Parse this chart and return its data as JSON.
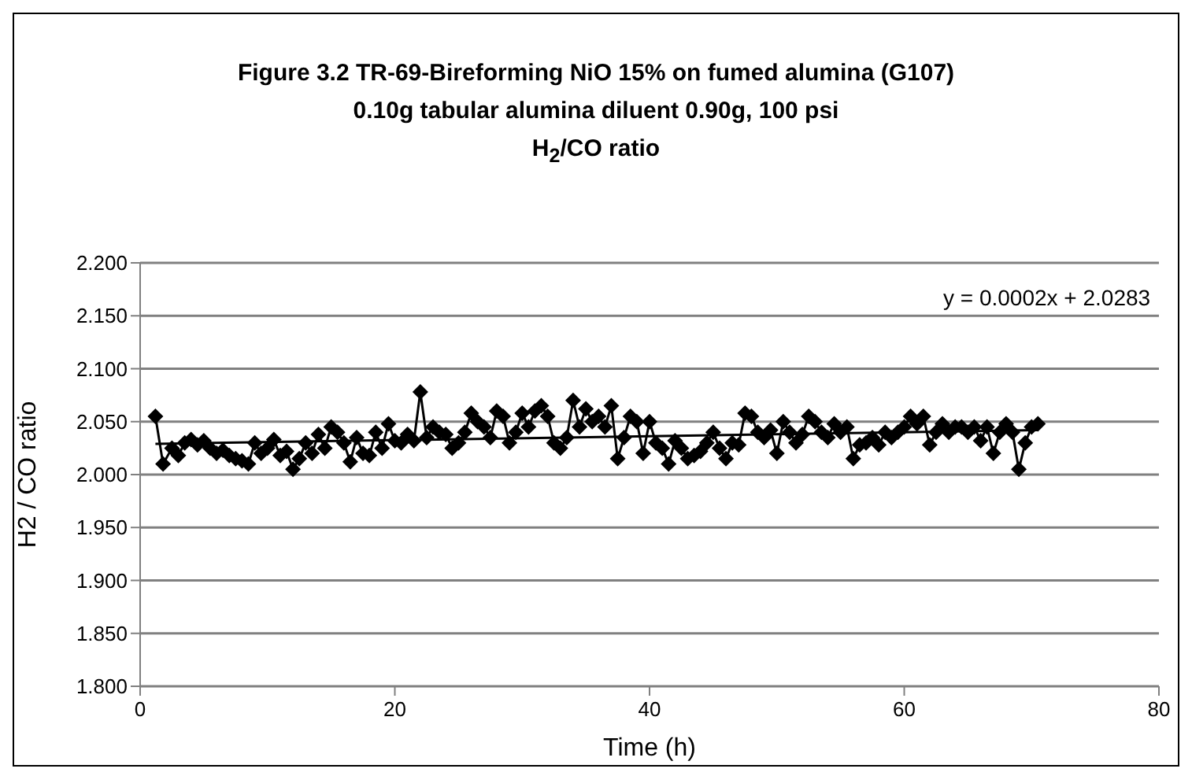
{
  "chart_data": {
    "type": "line",
    "title": "Figure 3.2 TR-69-Bireforming NiO 15% on fumed alumina (G107)",
    "subtitle": "0.10g tabular alumina diluent 0.90g, 100 psi\nH$_{2}$/CO ratio",
    "xlabel": "Time (h)",
    "ylabel": "H2 / CO ratio",
    "xlim": [
      0,
      80
    ],
    "xticks": [
      0,
      20,
      40,
      60,
      80
    ],
    "ylim": [
      1.8,
      2.2
    ],
    "yticks": [
      {
        "value": 1.8,
        "label": "1.800"
      },
      {
        "value": 1.85,
        "label": "1.850"
      },
      {
        "value": 1.9,
        "label": "1.900"
      },
      {
        "value": 1.95,
        "label": "1.950"
      },
      {
        "value": 2.0,
        "label": "2.000"
      },
      {
        "value": 2.05,
        "label": "2.050"
      },
      {
        "value": 2.1,
        "label": "2.100"
      },
      {
        "value": 2.15,
        "label": "2.150"
      },
      {
        "value": 2.2,
        "label": "2.200"
      }
    ],
    "grid": "y",
    "legend": false,
    "marker": "diamond",
    "line_style": "solid",
    "annotations": [
      "y = 0.0002x + 2.0283"
    ],
    "series": [
      {
        "color": "#000000",
        "x": [
          1.2,
          1.8,
          2.5,
          3,
          3.5,
          4,
          4.5,
          5,
          5.5,
          6,
          6.5,
          7,
          7.5,
          8,
          8.5,
          9,
          9.5,
          10,
          10.5,
          11,
          11.5,
          12,
          12.5,
          13,
          13.5,
          14,
          14.5,
          15,
          15.5,
          16,
          16.5,
          17,
          17.5,
          18,
          18.5,
          19,
          19.5,
          20,
          20.5,
          21,
          21.5,
          22,
          22.5,
          23,
          23.5,
          24,
          24.5,
          25,
          25.5,
          26,
          26.5,
          27,
          27.5,
          28,
          28.5,
          29,
          29.5,
          30,
          30.5,
          31,
          31.5,
          32,
          32.5,
          33,
          33.5,
          34,
          34.5,
          35,
          35.5,
          36,
          36.5,
          37,
          37.5,
          38,
          38.5,
          39,
          39.5,
          40,
          40.5,
          41,
          41.5,
          42,
          42.5,
          43,
          43.5,
          44,
          44.5,
          45,
          45.5,
          46,
          46.5,
          47,
          47.5,
          48,
          48.5,
          49,
          49.5,
          50,
          50.5,
          51,
          51.5,
          52,
          52.5,
          53,
          53.5,
          54,
          54.5,
          55,
          55.5,
          56,
          56.5,
          57,
          57.5,
          58,
          58.5,
          59,
          59.5,
          60,
          60.5,
          61,
          61.5,
          62,
          62.5,
          63,
          63.5,
          64,
          64.5,
          65,
          65.5,
          66,
          66.5,
          67,
          67.5,
          68,
          68.5,
          69,
          69.5,
          70,
          70.5
        ],
        "values": [
          2.055,
          2.01,
          2.025,
          2.018,
          2.03,
          2.033,
          2.028,
          2.032,
          2.025,
          2.02,
          2.023,
          2.018,
          2.015,
          2.013,
          2.01,
          2.03,
          2.02,
          2.025,
          2.033,
          2.018,
          2.022,
          2.005,
          2.015,
          2.03,
          2.02,
          2.038,
          2.025,
          2.045,
          2.04,
          2.03,
          2.012,
          2.035,
          2.02,
          2.018,
          2.04,
          2.025,
          2.048,
          2.032,
          2.03,
          2.038,
          2.032,
          2.078,
          2.035,
          2.045,
          2.04,
          2.038,
          2.025,
          2.03,
          2.04,
          2.058,
          2.05,
          2.045,
          2.035,
          2.06,
          2.055,
          2.03,
          2.04,
          2.058,
          2.045,
          2.06,
          2.065,
          2.055,
          2.03,
          2.025,
          2.035,
          2.07,
          2.045,
          2.062,
          2.05,
          2.055,
          2.045,
          2.065,
          2.015,
          2.035,
          2.055,
          2.05,
          2.02,
          2.05,
          2.03,
          2.025,
          2.01,
          2.032,
          2.025,
          2.015,
          2.018,
          2.022,
          2.03,
          2.04,
          2.025,
          2.015,
          2.03,
          2.028,
          2.058,
          2.055,
          2.04,
          2.035,
          2.042,
          2.02,
          2.05,
          2.04,
          2.03,
          2.038,
          2.055,
          2.05,
          2.04,
          2.035,
          2.048,
          2.04,
          2.045,
          2.015,
          2.028,
          2.03,
          2.035,
          2.028,
          2.04,
          2.035,
          2.04,
          2.045,
          2.055,
          2.048,
          2.055,
          2.028,
          2.04,
          2.048,
          2.04,
          2.045,
          2.045,
          2.04,
          2.045,
          2.032,
          2.045,
          2.02,
          2.04,
          2.048,
          2.04,
          2.005,
          2.03,
          2.045,
          2.048
        ]
      },
      {
        "type": "line",
        "color": "#000000",
        "marker": "none",
        "x": [
          1.2,
          70.5
        ],
        "values": [
          2.029,
          2.042
        ]
      }
    ]
  }
}
